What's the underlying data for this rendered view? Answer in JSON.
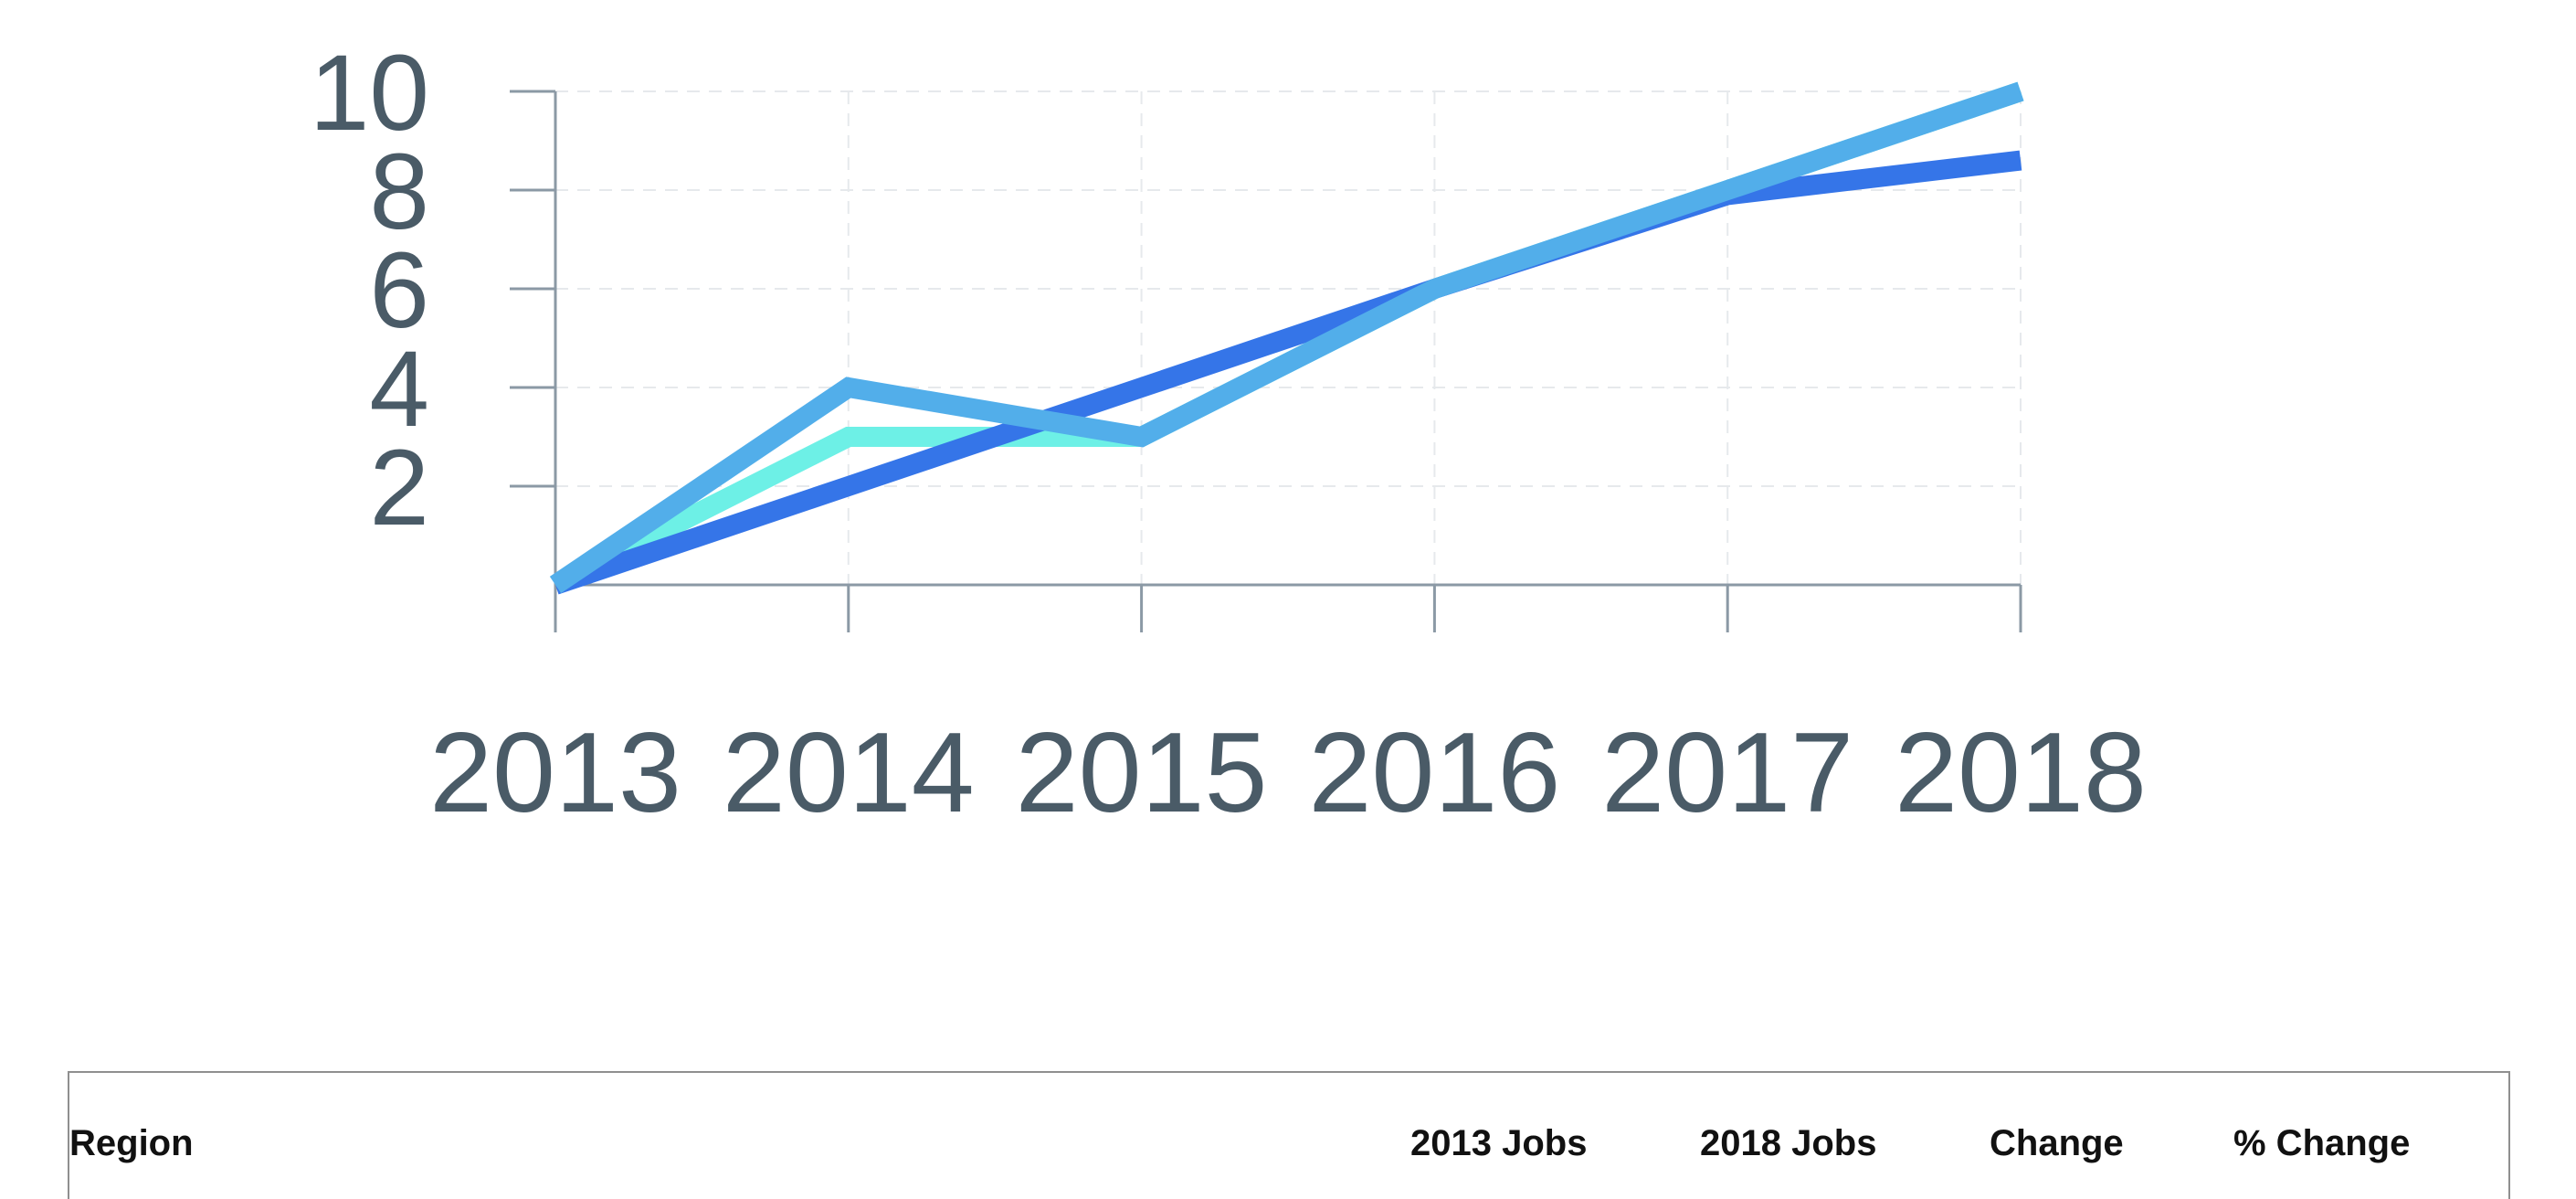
{
  "chart_data": {
    "type": "line",
    "x": [
      "2013",
      "2014",
      "2015",
      "2016",
      "2017",
      "2018"
    ],
    "ylim": [
      0,
      10
    ],
    "yticks": [
      2,
      4,
      6,
      8,
      10
    ],
    "grid": true,
    "series": [
      {
        "color": "#6df0e6",
        "values": [
          0,
          3,
          3,
          6,
          8,
          10
        ]
      },
      {
        "color": "#3575e8",
        "values": [
          0,
          2,
          4,
          6,
          7.9,
          8.6
        ]
      },
      {
        "color": "#52aeea",
        "values": [
          0,
          4,
          3,
          6,
          8,
          10
        ]
      }
    ]
  },
  "table": {
    "headers": [
      "Region",
      "2013 Jobs",
      "2018 Jobs",
      "Change",
      "% Change"
    ]
  }
}
